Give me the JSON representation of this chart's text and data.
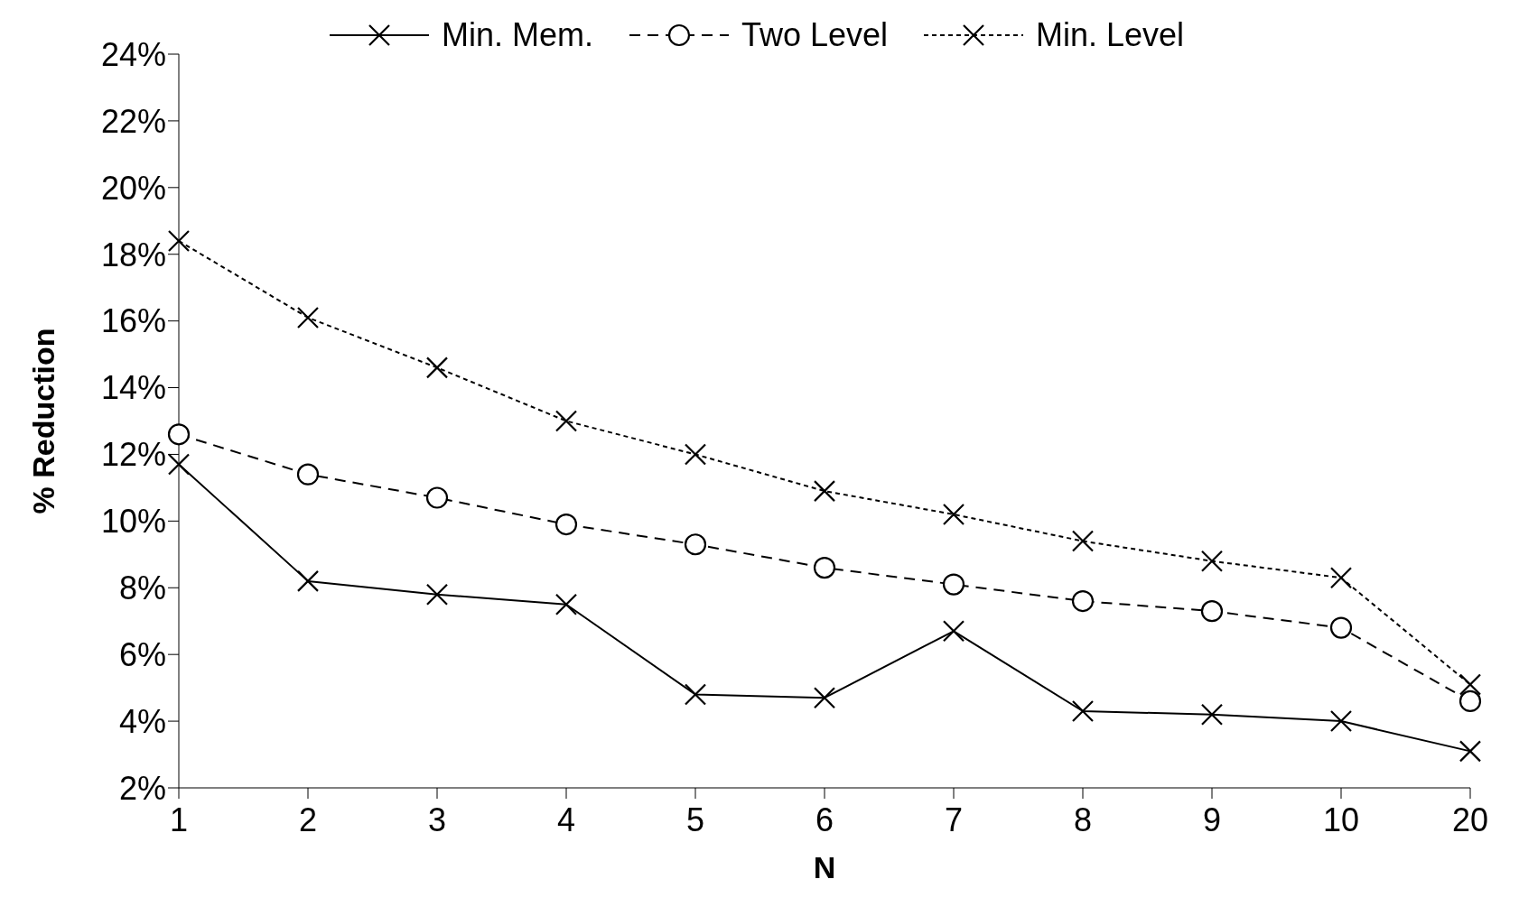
{
  "chart_data": {
    "type": "line",
    "xlabel": "N",
    "ylabel": "% Reduction",
    "categories": [
      "1",
      "2",
      "3",
      "4",
      "5",
      "6",
      "7",
      "8",
      "9",
      "10",
      "20"
    ],
    "series": [
      {
        "name": "Min. Mem.",
        "color": "#000000",
        "marker": "cross",
        "line_style": "solid",
        "values": [
          11.7,
          8.2,
          7.8,
          7.5,
          4.8,
          4.7,
          6.7,
          4.3,
          4.2,
          4.0,
          3.1
        ]
      },
      {
        "name": "Two Level",
        "color": "#000000",
        "marker": "circle",
        "line_style": "dashed",
        "values": [
          12.6,
          11.4,
          10.7,
          9.9,
          9.3,
          8.6,
          8.1,
          7.6,
          7.3,
          6.8,
          4.6
        ]
      },
      {
        "name": "Min. Level",
        "color": "#000000",
        "marker": "cross",
        "line_style": "dotted",
        "values": [
          18.4,
          16.1,
          14.6,
          13.0,
          12.0,
          10.9,
          10.2,
          9.4,
          8.8,
          8.3,
          5.1
        ]
      }
    ],
    "ylim": [
      2,
      24
    ],
    "yticks": [
      {
        "value": 2,
        "label": "2%"
      },
      {
        "value": 4,
        "label": "4%"
      },
      {
        "value": 6,
        "label": "6%"
      },
      {
        "value": 8,
        "label": "8%"
      },
      {
        "value": 10,
        "label": "10%"
      },
      {
        "value": 12,
        "label": "12%"
      },
      {
        "value": 14,
        "label": "14%"
      },
      {
        "value": 16,
        "label": "16%"
      },
      {
        "value": 18,
        "label": "18%"
      },
      {
        "value": 20,
        "label": "20%"
      },
      {
        "value": 22,
        "label": "22%"
      },
      {
        "value": 24,
        "label": "24%"
      }
    ],
    "grid": false,
    "legend": "top"
  }
}
